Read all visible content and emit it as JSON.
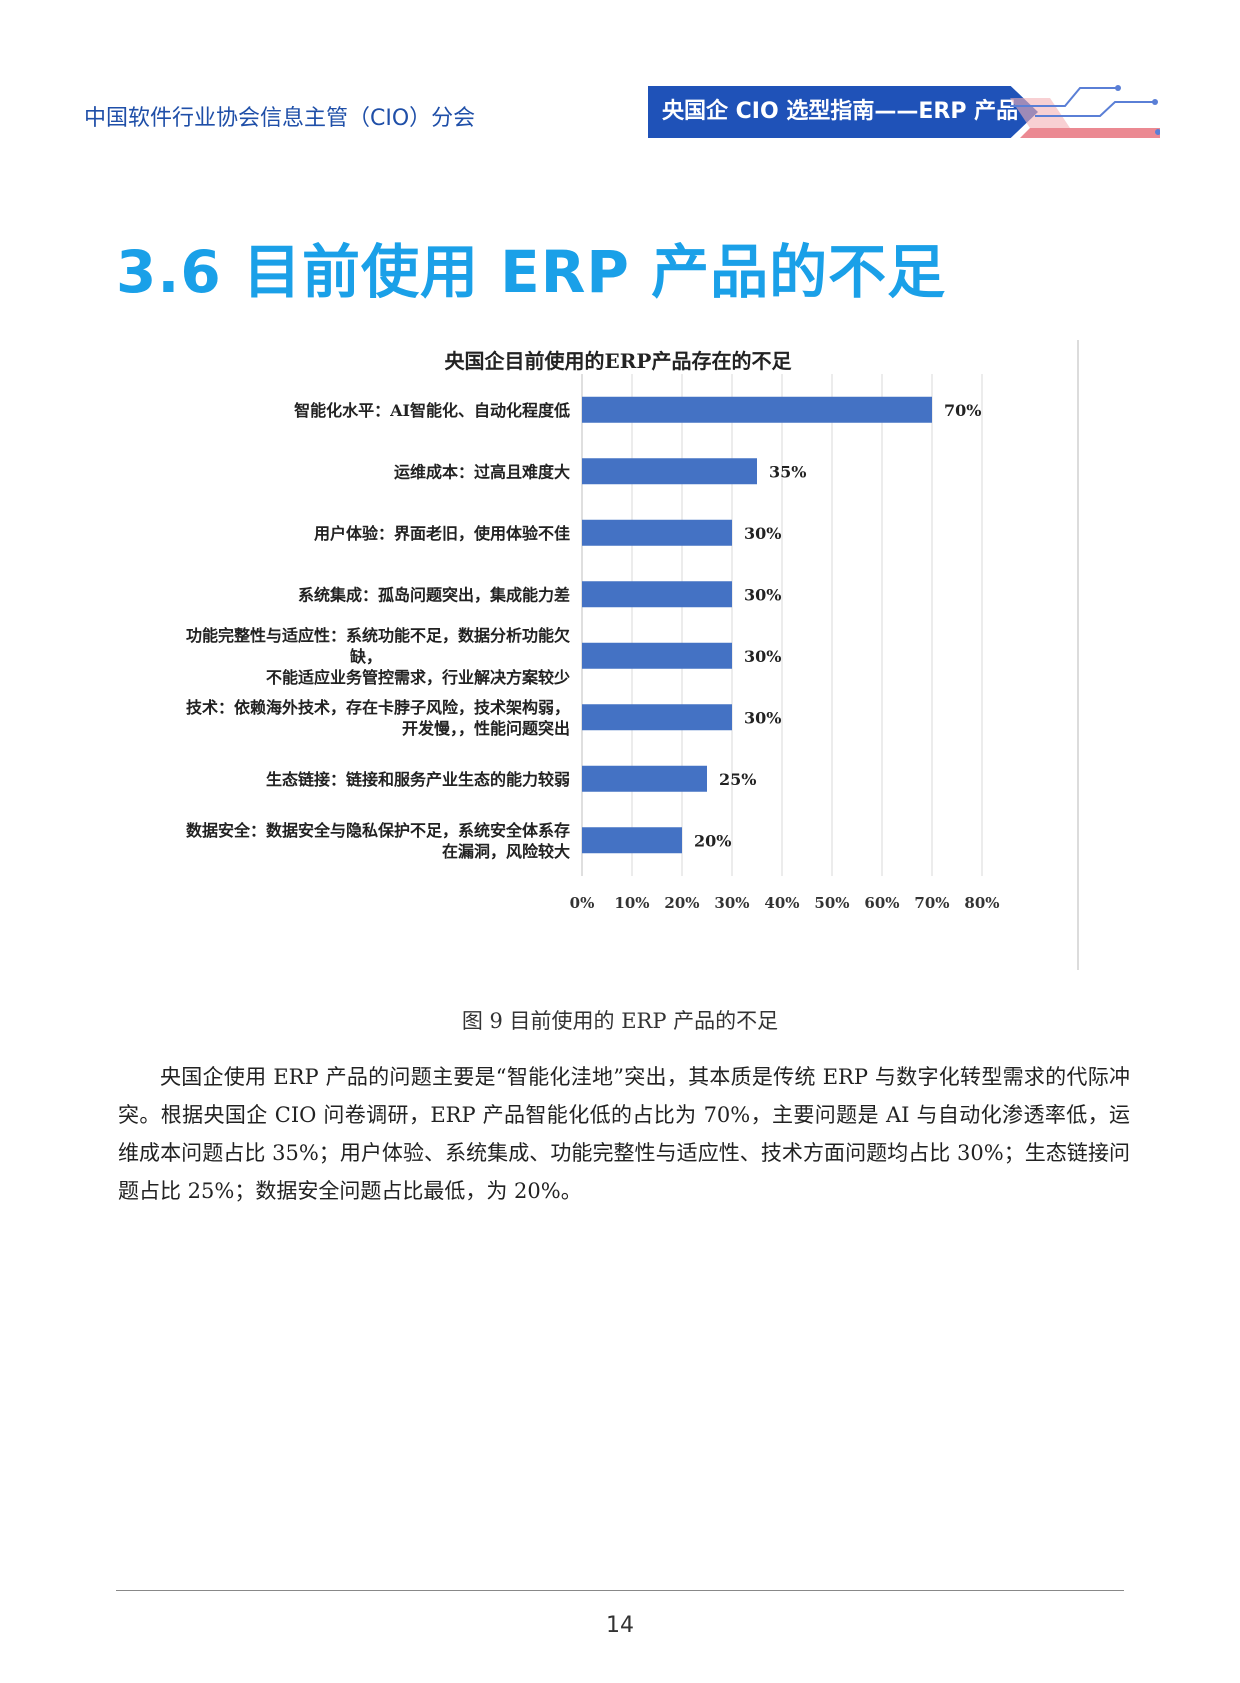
{
  "header": {
    "org_name": "中国软件行业协会信息主管（CIO）分会",
    "badge": "央国企 CIO 选型指南——ERP 产品"
  },
  "section": {
    "title": "3.6 目前使用 ERP 产品的不足"
  },
  "chart_data": {
    "type": "bar",
    "orientation": "horizontal",
    "title": "央国企目前使用的ERP产品存在的不足",
    "categories": [
      "智能化水平：AI智能化、自动化程度低",
      "运维成本：过高且难度大",
      "用户体验：界面老旧，使用体验不佳",
      "系统集成：孤岛问题突出，集成能力差",
      "功能完整性与适应性：系统功能不足，数据分析功能欠缺，不能适应业务管控需求，行业解决方案较少",
      "技术：依赖海外技术，存在卡脖子风险，技术架构弱，开发慢，，性能问题突出",
      "生态链接：链接和服务产业生态的能力较弱",
      "数据安全：数据安全与隐私保护不足，系统安全体系存在漏洞，风险较大"
    ],
    "category_lines": [
      [
        "智能化水平：AI智能化、自动化程度低"
      ],
      [
        "运维成本：过高且难度大"
      ],
      [
        "用户体验：界面老旧，使用体验不佳"
      ],
      [
        "系统集成：孤岛问题突出，集成能力差"
      ],
      [
        "功能完整性与适应性：系统功能不足，数据分析功能欠",
        "缺，",
        "不能适应业务管控需求，行业解决方案较少"
      ],
      [
        "技术：依赖海外技术，存在卡脖子风险，技术架构弱，",
        "开发慢，，性能问题突出"
      ],
      [
        "生态链接：链接和服务产业生态的能力较弱"
      ],
      [
        "数据安全：数据安全与隐私保护不足，系统安全体系存",
        "在漏洞，风险较大"
      ]
    ],
    "values": [
      70,
      35,
      30,
      30,
      30,
      30,
      25,
      20
    ],
    "value_labels": [
      "70%",
      "35%",
      "30%",
      "30%",
      "30%",
      "30%",
      "25%",
      "20%"
    ],
    "xlim": [
      0,
      80
    ],
    "x_ticks": [
      "0%",
      "10%",
      "20%",
      "30%",
      "40%",
      "50%",
      "60%",
      "70%",
      "80%"
    ],
    "bar_color": "#4472c4",
    "grid": true,
    "legend": "none"
  },
  "figure": {
    "caption": "图 9 目前使用的 ERP 产品的不足"
  },
  "body": {
    "paragraph": "央国企使用 ERP 产品的问题主要是“智能化洼地”突出，其本质是传统 ERP 与数字化转型需求的代际冲突。根据央国企 CIO 问卷调研，ERP 产品智能化低的占比为 70%，主要问题是 AI 与自动化渗透率低，运维成本问题占比 35%；用户体验、系统集成、功能完整性与适应性、技术方面问题均占比 30%；生态链接问题占比 25%；数据安全问题占比最低，为 20%。"
  },
  "footer": {
    "page_number": "14"
  }
}
